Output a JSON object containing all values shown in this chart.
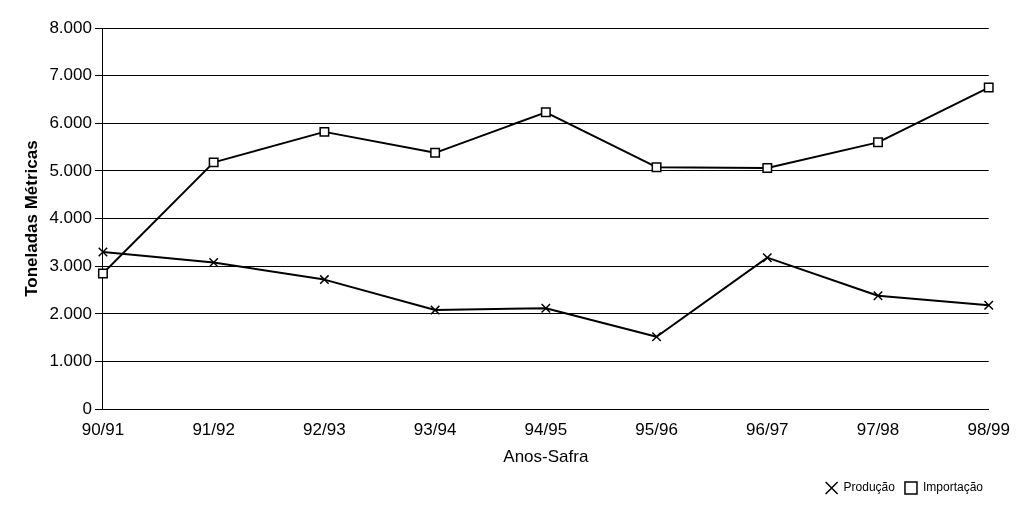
{
  "chart_data": {
    "type": "line",
    "xlabel": "Anos-Safra",
    "ylabel": "Toneladas Métricas",
    "categories": [
      "90/91",
      "91/92",
      "92/93",
      "93/94",
      "94/95",
      "95/96",
      "96/97",
      "97/98",
      "98/99"
    ],
    "series": [
      {
        "name": "Produção",
        "color": "#000000",
        "marker": "cross",
        "values": [
          3300,
          3080,
          2720,
          2080,
          2120,
          1520,
          3180,
          2380,
          2180
        ]
      },
      {
        "name": "Importação",
        "color": "#000000",
        "marker": "square",
        "values": [
          2850,
          5180,
          5820,
          5380,
          6230,
          5080,
          5060,
          5600,
          6750
        ]
      }
    ],
    "ylim": [
      0,
      8000
    ],
    "yticks": [
      {
        "value": 0,
        "label": "0"
      },
      {
        "value": 1000,
        "label": "1.000"
      },
      {
        "value": 2000,
        "label": "2.000"
      },
      {
        "value": 3000,
        "label": "3.000"
      },
      {
        "value": 4000,
        "label": "4.000"
      },
      {
        "value": 5000,
        "label": "5.000"
      },
      {
        "value": 6000,
        "label": "6.000"
      },
      {
        "value": 7000,
        "label": "7.000"
      },
      {
        "value": 8000,
        "label": "8.000"
      }
    ],
    "grid": "y",
    "legend": "bottom right",
    "line_style": "solid"
  }
}
